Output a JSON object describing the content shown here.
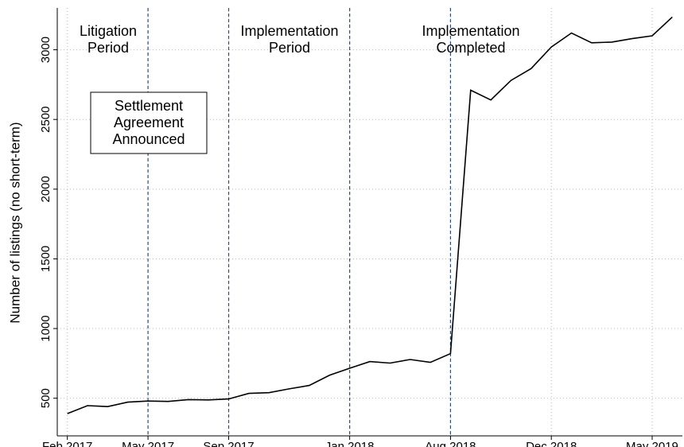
{
  "chart_data": {
    "type": "line",
    "y_label": "Number of listings (no short-term)",
    "categories": [
      "Feb 2017",
      null,
      null,
      null,
      "May 2017",
      null,
      null,
      null,
      "Sep 2017",
      null,
      null,
      null,
      null,
      null,
      "Jan 2018",
      null,
      null,
      null,
      null,
      "Aug 2018",
      null,
      null,
      null,
      null,
      "Dec 2018",
      null,
      null,
      null,
      null,
      "May 2019",
      null
    ],
    "values": [
      390,
      447,
      440,
      472,
      480,
      477,
      490,
      488,
      495,
      535,
      540,
      567,
      592,
      665,
      715,
      763,
      752,
      778,
      757,
      820,
      2710,
      2640,
      2780,
      2865,
      3020,
      3120,
      3050,
      3055,
      3080,
      3100,
      3235
    ],
    "color": "#000000",
    "xlim": [
      -0.5,
      30.5
    ],
    "ylim": [
      230,
      3300
    ],
    "yticks": [
      500,
      1000,
      1500,
      2000,
      2500,
      3000
    ],
    "grid": true,
    "vlines": [
      4,
      8,
      14,
      19
    ],
    "vline_color": "#2a4f7a",
    "annotations": [
      {
        "lines": [
          "Litigation",
          "Period"
        ]
      },
      {
        "lines": [
          "Implementation",
          "Period"
        ]
      },
      {
        "lines": [
          "Implementation",
          "Completed"
        ]
      },
      {
        "lines": [
          "Settlement",
          "Agreement",
          "Announced"
        ],
        "boxed": true
      }
    ]
  }
}
